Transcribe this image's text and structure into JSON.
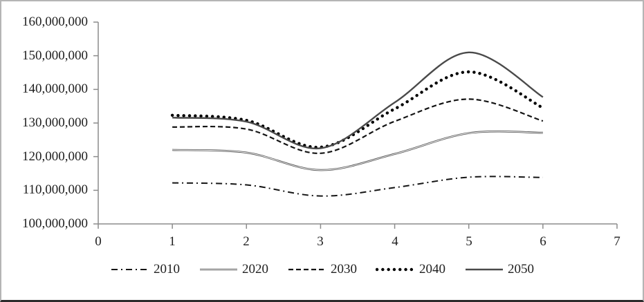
{
  "chart_data": {
    "type": "line",
    "title": "",
    "xlabel": "",
    "ylabel": "",
    "xlim": [
      0,
      7
    ],
    "ylim": [
      100000000,
      160000000
    ],
    "grid": false,
    "legend_position": "bottom",
    "x_tick_labels": [
      "0",
      "1",
      "2",
      "3",
      "4",
      "5",
      "6",
      "7"
    ],
    "y_tick_labels": [
      "160,000,000",
      "150,000,000",
      "140,000,000",
      "130,000,000",
      "120,000,000",
      "110,000,000",
      "100,000,000"
    ],
    "x": [
      1,
      2,
      3,
      4,
      5,
      6
    ],
    "series": [
      {
        "name": "2010",
        "style": "dash-dot",
        "values": [
          112200000,
          111600000,
          108300000,
          110800000,
          113900000,
          113800000
        ]
      },
      {
        "name": "2020",
        "style": "double-solid",
        "values": [
          122000000,
          121200000,
          116000000,
          120800000,
          127000000,
          127100000
        ]
      },
      {
        "name": "2030",
        "style": "dashed",
        "values": [
          128800000,
          128200000,
          121000000,
          130500000,
          137100000,
          130600000
        ]
      },
      {
        "name": "2040",
        "style": "dotted",
        "values": [
          132300000,
          130800000,
          122800000,
          134200000,
          145200000,
          134500000
        ]
      },
      {
        "name": "2050",
        "style": "solid",
        "values": [
          131600000,
          130400000,
          122500000,
          136100000,
          151000000,
          137700000
        ]
      }
    ]
  },
  "colors": {
    "axis": "#8c8c8c",
    "line_dark": "#141414",
    "line_gray": "#4a4a4a",
    "dots": "#000000",
    "frame_light": "#b5b5b5",
    "frame_dark": "#2b2b2b",
    "text": "#1f1f1f"
  }
}
